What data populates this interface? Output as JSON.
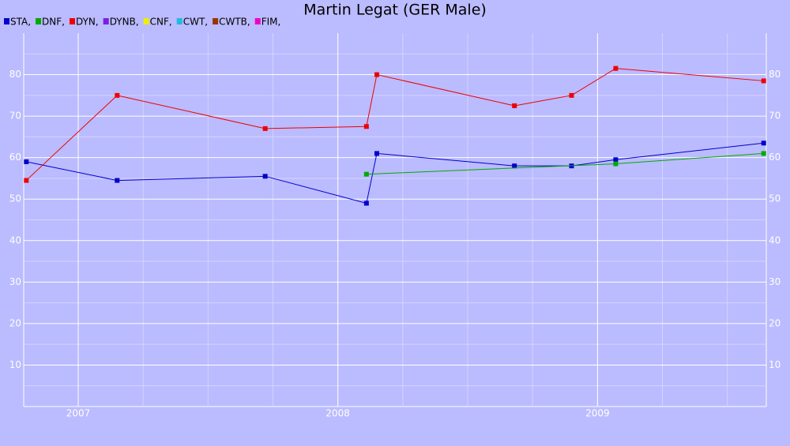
{
  "chart_data": {
    "type": "line",
    "title": "Martin Legat (GER Male)",
    "xlim": [
      2006.79,
      2009.65
    ],
    "xticks": [
      2007,
      2008,
      2009
    ],
    "ylim": [
      0,
      90
    ],
    "yticks": [
      10,
      20,
      30,
      40,
      50,
      60,
      70,
      80
    ],
    "grid": true,
    "legend": "top-left",
    "series": [
      {
        "name": "STA,",
        "color": "#0000cc",
        "x": [
          2006.8,
          2007.15,
          2007.72,
          2008.11,
          2008.15,
          2008.68,
          2008.9,
          2009.07,
          2009.64
        ],
        "values": [
          59,
          54.5,
          55.5,
          49,
          61,
          58,
          58,
          59.5,
          63.5
        ]
      },
      {
        "name": "DNF,",
        "color": "#00aa00",
        "x": [
          2008.11,
          2009.07,
          2009.64
        ],
        "values": [
          56,
          58.5,
          61
        ]
      },
      {
        "name": "DYN,",
        "color": "#ee0000",
        "x": [
          2006.8,
          2007.15,
          2007.72,
          2008.11,
          2008.15,
          2008.68,
          2008.9,
          2009.07,
          2009.64
        ],
        "values": [
          54.5,
          75,
          67,
          67.5,
          80,
          72.5,
          75,
          81.5,
          78.5
        ]
      },
      {
        "name": "DYNB,",
        "color": "#7722dd",
        "x": [],
        "values": []
      },
      {
        "name": "CNF,",
        "color": "#eeee00",
        "x": [],
        "values": []
      },
      {
        "name": "CWT,",
        "color": "#22bbdd",
        "x": [],
        "values": []
      },
      {
        "name": "CWTB,",
        "color": "#993300",
        "x": [],
        "values": []
      },
      {
        "name": "FIM,",
        "color": "#ee00cc",
        "x": [],
        "values": []
      }
    ]
  }
}
